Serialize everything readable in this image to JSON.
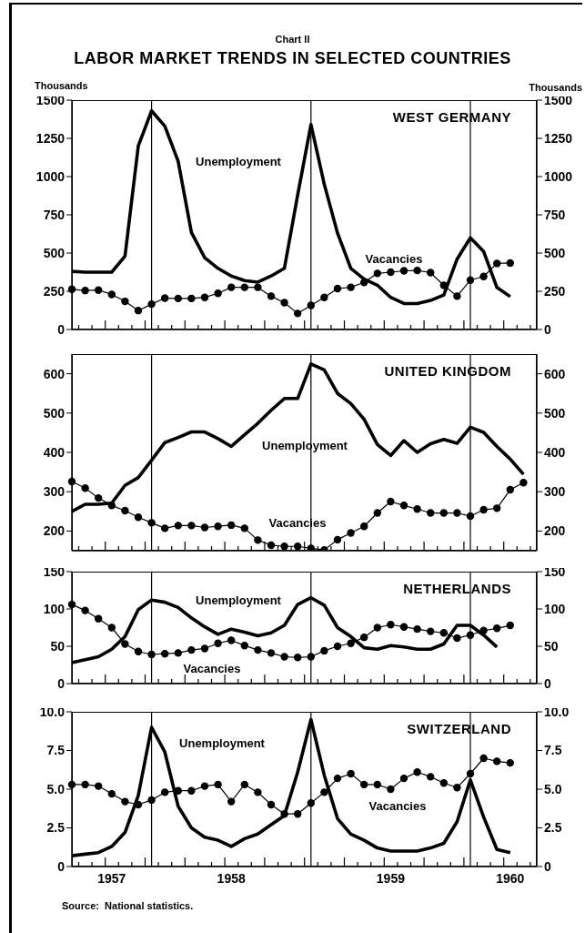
{
  "chart_data": [
    {
      "type": "line",
      "title": "WEST GERMANY",
      "ylabel": "Thousands",
      "y2label": "Thousands",
      "annotations": [
        "Chart II",
        "LABOR MARKET TRENDS IN SELECTED COUNTRIES",
        "Unemployment",
        "Vacancies"
      ],
      "categories": [
        null,
        null,
        null,
        "1957",
        null,
        null,
        null,
        null,
        null,
        null,
        null,
        null,
        "1958",
        null,
        null,
        null,
        null,
        null,
        null,
        null,
        null,
        null,
        null,
        null,
        "1959",
        null,
        null,
        null,
        null,
        null,
        null,
        null,
        null,
        "1960",
        null,
        null
      ],
      "series": [
        {
          "color": "#000000",
          "marker": "none",
          "values": [
            380,
            375,
            375,
            375,
            480,
            1200,
            1430,
            1330,
            1100,
            635,
            470,
            400,
            350,
            320,
            310,
            350,
            400,
            880,
            1340,
            950,
            630,
            400,
            330,
            290,
            210,
            170,
            170,
            190,
            225,
            460,
            600,
            510,
            275,
            215,
            null,
            null
          ]
        },
        {
          "color": "#000000",
          "marker": "circle",
          "values": [
            263,
            255,
            258,
            229,
            184,
            124,
            166,
            205,
            203,
            203,
            210,
            237,
            276,
            276,
            276,
            218,
            176,
            105,
            158,
            210,
            268,
            276,
            308,
            367,
            375,
            384,
            386,
            372,
            289,
            218,
            323,
            347,
            432,
            435,
            null,
            null
          ]
        }
      ],
      "ylim": [
        0,
        1500
      ],
      "yticks": [
        0,
        250,
        500,
        750,
        1000,
        1250,
        1500
      ],
      "y2lim": [
        0,
        1500
      ],
      "y2ticks": [
        0,
        250,
        500,
        750,
        1000,
        1250,
        1500
      ],
      "tick_labels": "y",
      "grid": "x"
    },
    {
      "type": "line",
      "title": "UNITED KINGDOM",
      "annotations": [
        "Unemployment",
        "Vacancies"
      ],
      "categories": [
        null,
        null,
        null,
        "1957",
        null,
        null,
        null,
        null,
        null,
        null,
        null,
        null,
        "1958",
        null,
        null,
        null,
        null,
        null,
        null,
        null,
        null,
        null,
        null,
        null,
        "1959",
        null,
        null,
        null,
        null,
        null,
        null,
        null,
        null,
        "1960",
        null,
        null
      ],
      "series": [
        {
          "color": "#000000",
          "marker": "none",
          "values": [
            250,
            268,
            268,
            271,
            316,
            336,
            380,
            425,
            438,
            452,
            452,
            435,
            415,
            445,
            474,
            507,
            537,
            537,
            625,
            610,
            550,
            524,
            484,
            420,
            392,
            430,
            400,
            422,
            433,
            423,
            464,
            451,
            415,
            383,
            344,
            null
          ]
        },
        {
          "color": "#000000",
          "marker": "circle",
          "values": [
            326,
            309,
            284,
            265,
            252,
            235,
            221,
            207,
            214,
            214,
            209,
            212,
            215,
            207,
            177,
            164,
            161,
            161,
            156,
            152,
            178,
            195,
            212,
            246,
            275,
            265,
            256,
            246,
            246,
            246,
            238,
            254,
            258,
            305,
            323,
            null
          ]
        }
      ],
      "ylim": [
        150,
        650
      ],
      "yticks": [
        200,
        300,
        400,
        500,
        600
      ],
      "y2lim": [
        150,
        650
      ],
      "y2ticks": [
        200,
        300,
        400,
        500,
        600
      ],
      "tick_labels": "y",
      "grid": "x"
    },
    {
      "type": "line",
      "title": "NETHERLANDS",
      "annotations": [
        "Unemployment",
        "Vacancies"
      ],
      "categories": [
        null,
        null,
        null,
        "1957",
        null,
        null,
        null,
        null,
        null,
        null,
        null,
        null,
        "1958",
        null,
        null,
        null,
        null,
        null,
        null,
        null,
        null,
        null,
        null,
        null,
        "1959",
        null,
        null,
        null,
        null,
        null,
        null,
        null,
        null,
        "1960",
        null,
        null
      ],
      "series": [
        {
          "color": "#000000",
          "marker": "none",
          "values": [
            28,
            32,
            36,
            46,
            63,
            99,
            112,
            109,
            102,
            88,
            76,
            66,
            73,
            69,
            64,
            68,
            78,
            106,
            115,
            105,
            75,
            63,
            48,
            46,
            51,
            49,
            46,
            46,
            53,
            78,
            78,
            65,
            49,
            null,
            null,
            null
          ]
        },
        {
          "color": "#000000",
          "marker": "circle",
          "values": [
            106,
            98,
            87,
            75,
            53,
            43,
            39,
            40,
            41,
            45,
            47,
            54,
            58,
            51,
            45,
            41,
            36,
            35,
            36,
            44,
            50,
            54,
            62,
            75,
            79,
            76,
            73,
            70,
            68,
            61,
            65,
            71,
            74,
            78,
            null,
            null
          ]
        }
      ],
      "ylim": [
        0,
        150
      ],
      "yticks": [
        0,
        50,
        100,
        150
      ],
      "y2lim": [
        0,
        150
      ],
      "y2ticks": [
        0,
        50,
        100,
        150
      ],
      "tick_labels": "y",
      "grid": "x"
    },
    {
      "type": "line",
      "title": "SWITZERLAND",
      "annotations": [
        "Unemployment",
        "Vacancies",
        "Source:  National statistics."
      ],
      "categories": [
        null,
        null,
        null,
        "1957",
        null,
        null,
        null,
        null,
        null,
        null,
        null,
        null,
        "1958",
        null,
        null,
        null,
        null,
        null,
        null,
        null,
        null,
        null,
        null,
        null,
        "1959",
        null,
        null,
        null,
        null,
        null,
        null,
        null,
        null,
        "1960",
        null,
        null
      ],
      "series": [
        {
          "color": "#000000",
          "marker": "none",
          "values": [
            0.7,
            0.8,
            0.9,
            1.3,
            2.2,
            4.6,
            9.0,
            7.4,
            3.9,
            2.5,
            1.9,
            1.7,
            1.3,
            1.8,
            2.1,
            2.7,
            3.3,
            6.1,
            9.5,
            5.9,
            3.1,
            2.1,
            1.7,
            1.2,
            1.0,
            1.0,
            1.0,
            1.2,
            1.5,
            2.9,
            5.6,
            3.2,
            1.1,
            0.9,
            null,
            null
          ]
        },
        {
          "color": "#000000",
          "marker": "circle",
          "values": [
            5.3,
            5.3,
            5.2,
            4.7,
            4.2,
            4.0,
            4.3,
            4.8,
            4.9,
            4.9,
            5.2,
            5.3,
            4.2,
            5.3,
            4.8,
            4.0,
            3.4,
            3.4,
            4.1,
            4.8,
            5.7,
            6.0,
            5.3,
            5.3,
            5.0,
            5.7,
            6.1,
            5.8,
            5.4,
            5.1,
            6.0,
            7.0,
            6.8,
            6.7,
            null,
            null
          ]
        }
      ],
      "ylim": [
        0,
        10
      ],
      "yticks": [
        0,
        {
          "value": 2.5,
          "label": "2.5"
        },
        {
          "value": 5,
          "label": "5.0"
        },
        {
          "value": 7.5,
          "label": "7.5"
        },
        {
          "value": 10,
          "label": "10.0"
        }
      ],
      "y2lim": [
        0,
        10
      ],
      "y2ticks": [
        0,
        {
          "value": 2.5,
          "label": "2.5"
        },
        {
          "value": 5,
          "label": "5.0"
        },
        {
          "value": 7.5,
          "label": "7.5"
        },
        {
          "value": 10,
          "label": "10.0"
        }
      ],
      "grid": "x"
    }
  ]
}
